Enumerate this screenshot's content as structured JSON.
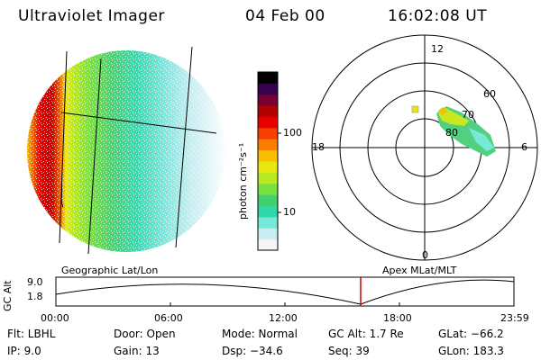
{
  "header": {
    "title": "Ultraviolet Imager",
    "date": "04 Feb 00",
    "time": "16:02:08 UT"
  },
  "left_panel": {
    "caption": "Geographic Lat/Lon"
  },
  "colorbar": {
    "unit_label": "photon cm⁻²s⁻¹",
    "ticks": [
      "100",
      "10"
    ],
    "colors": [
      "#f5f5f5",
      "#c8eef2",
      "#78e8d8",
      "#2ed8a8",
      "#40d070",
      "#78e040",
      "#b8e820",
      "#e8e810",
      "#f8c000",
      "#f88000",
      "#f84000",
      "#e80000",
      "#b00000",
      "#780030",
      "#3a0050",
      "#000000"
    ]
  },
  "polar_plot": {
    "caption": "Apex MLat/MLT",
    "mlt_labels": [
      "12",
      "18",
      "6",
      "0"
    ],
    "lat_labels": [
      "60",
      "70",
      "80"
    ]
  },
  "timeline": {
    "y_axis_label": "GC Alt",
    "y_ticks": [
      "9.0",
      "1.8"
    ],
    "x_ticks": [
      "00:00",
      "06:00",
      "12:00",
      "18:00",
      "23:59"
    ],
    "current_marker_color": "#cc0000"
  },
  "info": {
    "flt": "Flt: LBHL",
    "ip": "IP:  9.0",
    "door": "Door: Open",
    "gain": "Gain: 13",
    "mode": "Mode: Normal",
    "dsp": "Dsp:   −34.6",
    "gc_alt": "GC Alt: 1.7 Re",
    "seq": "Seq: 39",
    "glat": "GLat:  −66.2",
    "glon": "GLon: 183.3"
  }
}
